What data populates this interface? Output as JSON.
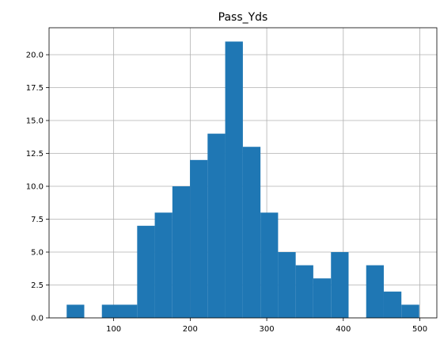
{
  "chart_data": {
    "type": "bar",
    "title": "Pass_Yds",
    "xlabel": "",
    "ylabel": "",
    "x_range": [
      15.6,
      522.2
    ],
    "ylim": [
      0,
      22.05
    ],
    "grid": true,
    "bar_color": "#1f77b4",
    "grid_color": "#b0b0b0",
    "x_ticks": [
      100,
      200,
      300,
      400,
      500
    ],
    "x_tick_labels": [
      "100",
      "200",
      "300",
      "400",
      "500"
    ],
    "y_ticks": [
      0,
      2.5,
      5,
      7.5,
      10,
      12.5,
      15,
      17.5,
      20
    ],
    "y_tick_labels": [
      "0.0",
      "2.5",
      "5.0",
      "7.5",
      "10.0",
      "12.5",
      "15.0",
      "17.5",
      "20.0"
    ],
    "bins": [
      {
        "x0": 38.6,
        "x1": 61.6,
        "count": 1
      },
      {
        "x0": 61.6,
        "x1": 84.6,
        "count": 0
      },
      {
        "x0": 84.6,
        "x1": 107.6,
        "count": 1
      },
      {
        "x0": 107.6,
        "x1": 130.7,
        "count": 1
      },
      {
        "x0": 130.7,
        "x1": 153.7,
        "count": 7
      },
      {
        "x0": 153.7,
        "x1": 176.7,
        "count": 8
      },
      {
        "x0": 176.7,
        "x1": 199.7,
        "count": 10
      },
      {
        "x0": 199.7,
        "x1": 222.7,
        "count": 12
      },
      {
        "x0": 222.7,
        "x1": 245.7,
        "count": 14
      },
      {
        "x0": 245.7,
        "x1": 268.8,
        "count": 21
      },
      {
        "x0": 268.8,
        "x1": 291.8,
        "count": 13
      },
      {
        "x0": 291.8,
        "x1": 314.8,
        "count": 8
      },
      {
        "x0": 314.8,
        "x1": 337.8,
        "count": 5
      },
      {
        "x0": 337.8,
        "x1": 360.8,
        "count": 4
      },
      {
        "x0": 360.8,
        "x1": 383.9,
        "count": 3
      },
      {
        "x0": 383.9,
        "x1": 406.9,
        "count": 5
      },
      {
        "x0": 406.9,
        "x1": 429.9,
        "count": 0
      },
      {
        "x0": 429.9,
        "x1": 452.9,
        "count": 4
      },
      {
        "x0": 452.9,
        "x1": 475.9,
        "count": 2
      },
      {
        "x0": 475.9,
        "x1": 499.2,
        "count": 1
      }
    ]
  }
}
